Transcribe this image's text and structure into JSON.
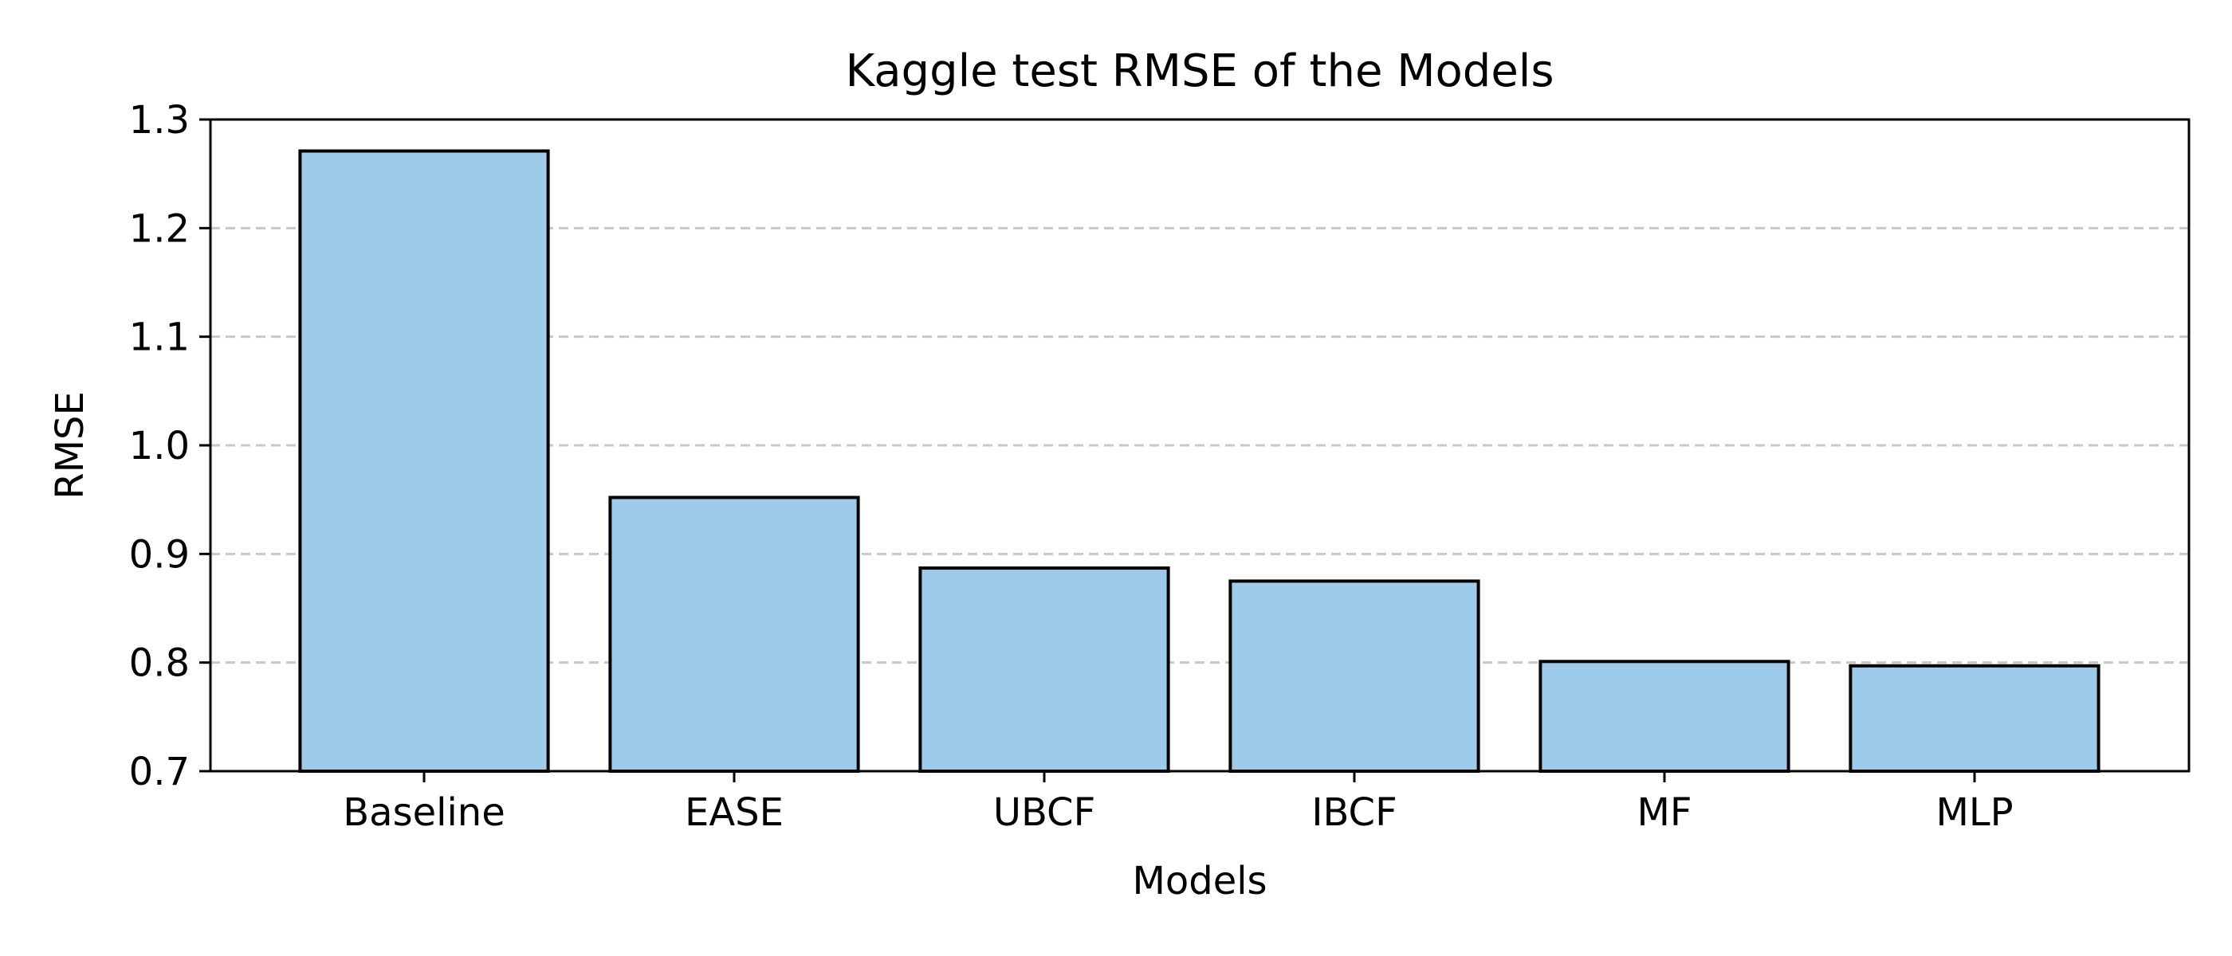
{
  "chart_data": {
    "type": "bar",
    "title": "Kaggle test RMSE of the Models",
    "xlabel": "Models",
    "ylabel": "RMSE",
    "categories": [
      "Baseline",
      "EASE",
      "UBCF",
      "IBCF",
      "MF",
      "MLP"
    ],
    "values": [
      1.271,
      0.952,
      0.887,
      0.875,
      0.801,
      0.797
    ],
    "ylim": [
      0.7,
      1.3
    ],
    "yticks": [
      "0.7",
      "0.8",
      "0.9",
      "1.0",
      "1.1",
      "1.2",
      "1.3"
    ],
    "grid": "y-dashed",
    "legend": "none",
    "colors": {
      "bar_fill": "#9ecbe9",
      "bar_edge": "#000000",
      "grid": "#c8c8c8",
      "axis": "#000000"
    }
  }
}
